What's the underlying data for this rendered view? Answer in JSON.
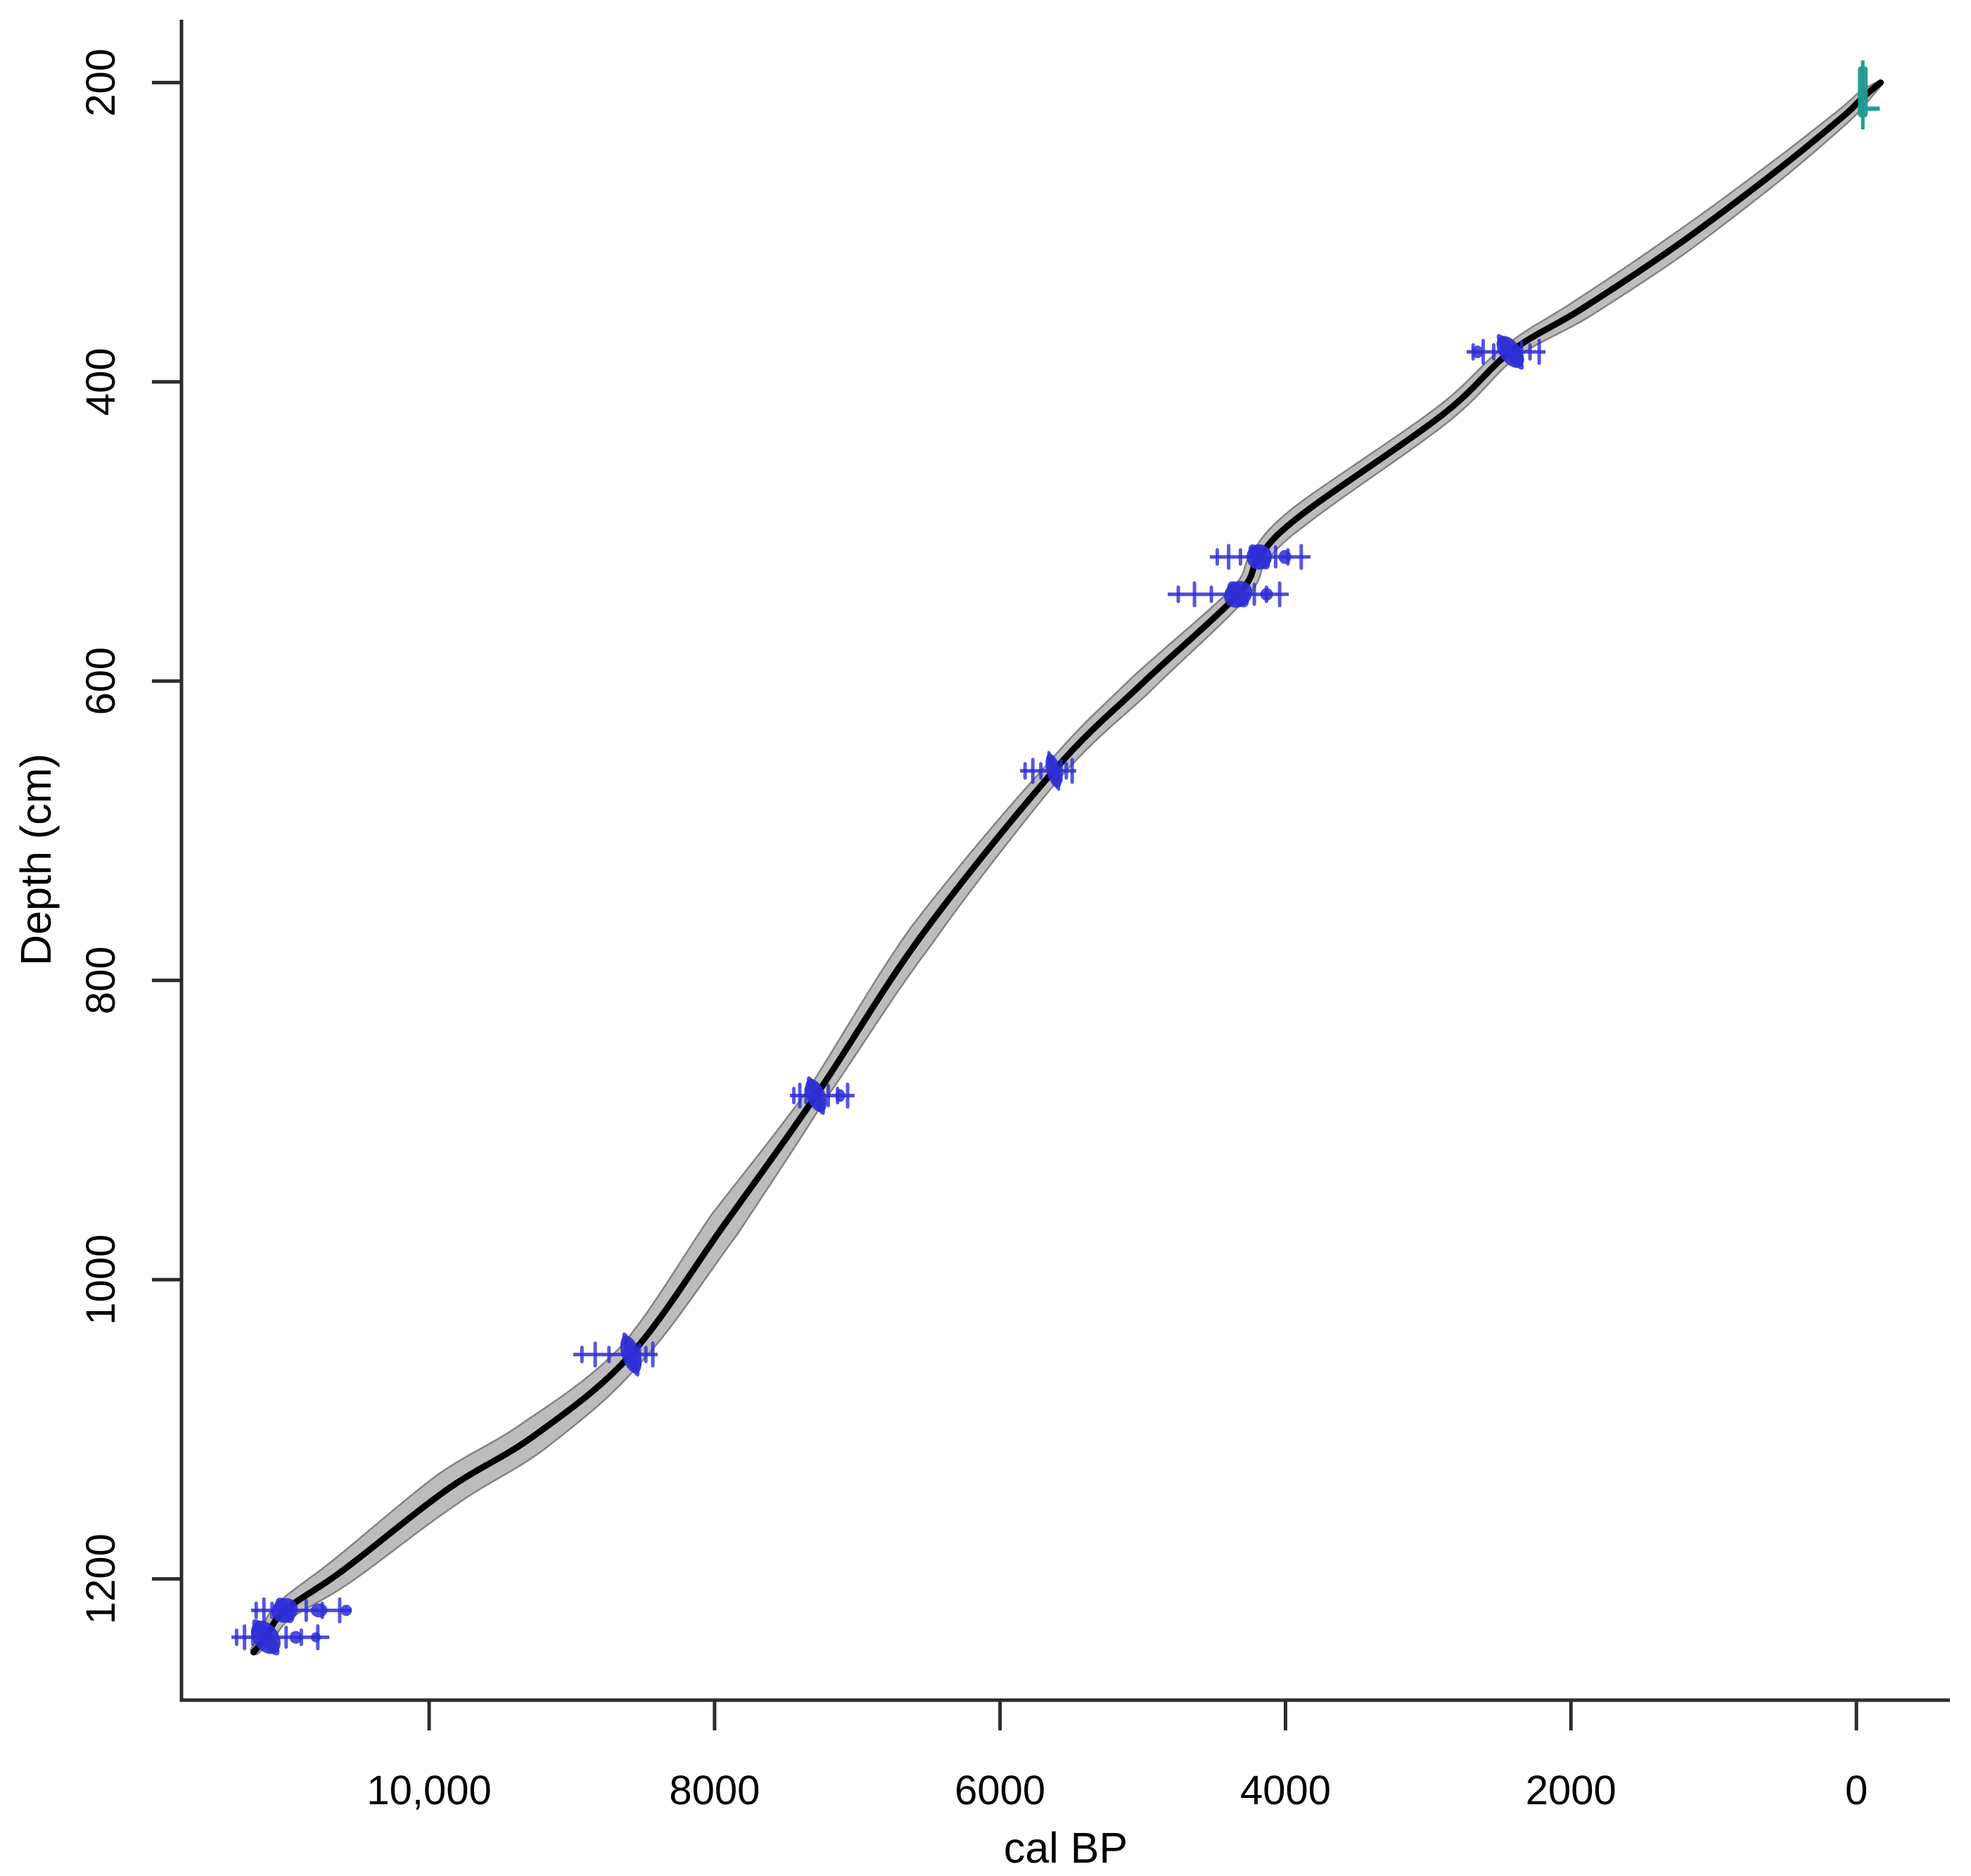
{
  "page": {
    "background": "#ffffff"
  },
  "chart_data": {
    "type": "line",
    "title": "",
    "xlabel": "cal BP",
    "ylabel": "Depth (cm)",
    "legend": "none",
    "grid": false,
    "x_axis": {
      "reversed": true,
      "lim": [
        11735,
        -655
      ],
      "ticks": [
        {
          "v": 10000,
          "label": "10,000"
        },
        {
          "v": 8000,
          "label": "8000"
        },
        {
          "v": 6000,
          "label": "6000"
        },
        {
          "v": 4000,
          "label": "4000"
        },
        {
          "v": 2000,
          "label": "2000"
        },
        {
          "v": 0,
          "label": "0"
        }
      ]
    },
    "y_axis": {
      "reversed": true,
      "lim": [
        158,
        1281
      ],
      "ticks": [
        {
          "v": 200,
          "label": "200"
        },
        {
          "v": 400,
          "label": "400"
        },
        {
          "v": 600,
          "label": "600"
        },
        {
          "v": 800,
          "label": "800"
        },
        {
          "v": 1000,
          "label": "1000"
        },
        {
          "v": 1200,
          "label": "1200"
        }
      ]
    },
    "colors": {
      "curve": "#000000",
      "envelope_fill": "#bcbcbc",
      "envelope_edge": "#838383",
      "date_blue": "#2e2ed6",
      "surface_teal": "#1f9a92"
    },
    "model_curve": {
      "points": [
        {
          "cal": -170,
          "depth": 200,
          "hw": 3
        },
        {
          "cal": -45,
          "depth": 210,
          "hw": 9
        },
        {
          "cal": 110,
          "depth": 224,
          "hw": 11
        },
        {
          "cal": 600,
          "depth": 262,
          "hw": 14
        },
        {
          "cal": 1260,
          "depth": 309,
          "hw": 16
        },
        {
          "cal": 1920,
          "depth": 351,
          "hw": 15
        },
        {
          "cal": 2425,
          "depth": 380,
          "hw": 11
        },
        {
          "cal": 2900,
          "depth": 422,
          "hw": 13
        },
        {
          "cal": 3890,
          "depth": 489,
          "hw": 15
        },
        {
          "cal": 4184,
          "depth": 517,
          "hw": 12
        },
        {
          "cal": 4332,
          "depth": 542,
          "hw": 12
        },
        {
          "cal": 5020,
          "depth": 603,
          "hw": 16
        },
        {
          "cal": 5624,
          "depth": 660,
          "hw": 13
        },
        {
          "cal": 6550,
          "depth": 770,
          "hw": 19
        },
        {
          "cal": 7290,
          "depth": 877,
          "hw": 14
        },
        {
          "cal": 7930,
          "depth": 963,
          "hw": 23
        },
        {
          "cal": 8586,
          "depth": 1050,
          "hw": 18
        },
        {
          "cal": 9260,
          "depth": 1104,
          "hw": 24
        },
        {
          "cal": 9870,
          "depth": 1140,
          "hw": 25
        },
        {
          "cal": 10600,
          "depth": 1194,
          "hw": 20
        },
        {
          "cal": 11011,
          "depth": 1221,
          "hw": 14
        },
        {
          "cal": 11144,
          "depth": 1239,
          "hw": 10
        },
        {
          "cal": 11230,
          "depth": 1249,
          "hw": 5
        }
      ]
    },
    "dates": [
      {
        "id": "surface-date",
        "kind": "surface",
        "color": "#1f9a92",
        "cal": -45,
        "depth": 209,
        "depth_range": [
          189,
          229
        ]
      },
      {
        "id": "c14-date-1",
        "kind": "radiocarbon",
        "color": "#2e2ed6",
        "cal": 2425,
        "depth": 380,
        "cal_range": [
          2731,
          2178
        ],
        "blob": {
          "rx": 15,
          "ry": 26,
          "rot": -36
        },
        "lumps": [
          {
            "dcal": 230,
            "rx": 8,
            "ry": 9
          }
        ]
      },
      {
        "id": "c14-date-2",
        "kind": "radiocarbon",
        "color": "#2e2ed6",
        "cal": 4184,
        "depth": 517,
        "cal_range": [
          4530,
          3825
        ],
        "blob": {
          "rx": 18,
          "ry": 18,
          "rot": -38
        },
        "lumps": [
          {
            "dcal": -180,
            "rx": 9,
            "ry": 10
          }
        ]
      },
      {
        "id": "c14-date-3",
        "kind": "radiocarbon",
        "color": "#2e2ed6",
        "cal": 4332,
        "depth": 542,
        "cal_range": [
          4825,
          3977
        ],
        "blob": {
          "rx": 21,
          "ry": 18,
          "rot": -35
        },
        "lumps": [
          {
            "dcal": -200,
            "rx": 9,
            "ry": 9
          }
        ]
      },
      {
        "id": "c14-date-4",
        "kind": "radiocarbon",
        "color": "#2e2ed6",
        "cal": 5624,
        "depth": 660,
        "cal_range": [
          5860,
          5466
        ],
        "blob": {
          "rx": 10,
          "ry": 25,
          "rot": -15
        },
        "lumps": []
      },
      {
        "id": "c14-date-5",
        "kind": "radiocarbon",
        "color": "#2e2ed6",
        "cal": 7290,
        "depth": 877,
        "cal_range": [
          7472,
          7019
        ],
        "blob": {
          "rx": 13,
          "ry": 25,
          "rot": -22
        },
        "lumps": [
          {
            "dcal": -170,
            "rx": 7,
            "ry": 9
          }
        ]
      },
      {
        "id": "c14-date-6",
        "kind": "radiocarbon",
        "color": "#2e2ed6",
        "cal": 8586,
        "depth": 1050,
        "cal_range": [
          8990,
          8399
        ],
        "blob": {
          "rx": 13,
          "ry": 28,
          "rot": -18
        },
        "lumps": []
      },
      {
        "id": "c14-date-7",
        "kind": "radiocarbon",
        "color": "#2e2ed6",
        "cal": 11011,
        "depth": 1221,
        "cal_range": [
          11247,
          10542
        ],
        "blob": {
          "rx": 19,
          "ry": 17,
          "rot": -30
        },
        "lumps": [
          {
            "dcal": -240,
            "rx": 12,
            "ry": 10
          },
          {
            "dcal": -430,
            "rx": 8,
            "ry": 8
          }
        ]
      },
      {
        "id": "c14-date-8",
        "kind": "radiocarbon",
        "color": "#2e2ed6",
        "cal": 11144,
        "depth": 1239,
        "cal_range": [
          11385,
          10700
        ],
        "blob": {
          "rx": 18,
          "ry": 26,
          "rot": -35
        },
        "lumps": [
          {
            "dcal": -210,
            "rx": 9,
            "ry": 9
          },
          {
            "dcal": -350,
            "rx": 7,
            "ry": 7
          }
        ]
      }
    ]
  }
}
